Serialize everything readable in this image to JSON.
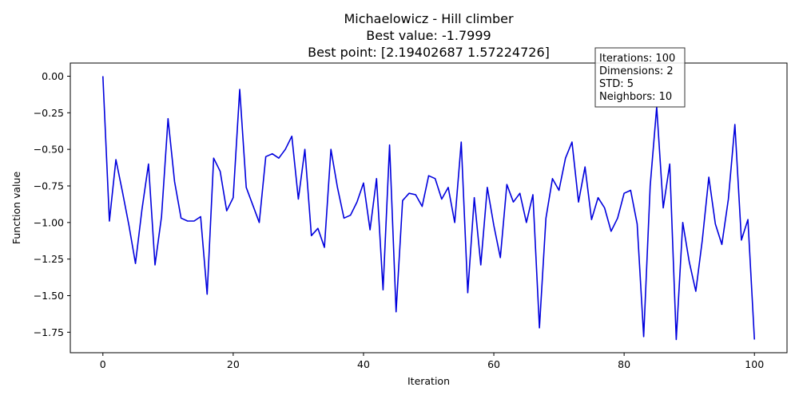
{
  "chart_data": {
    "type": "line",
    "title_lines": [
      "Michaelowicz - Hill climber",
      "Best value: -1.7999",
      "Best point: [2.19402687 1.57224726]"
    ],
    "xlabel": "Iteration",
    "ylabel": "Function value",
    "xlim": [
      -5,
      105
    ],
    "ylim": [
      -1.89,
      0.09
    ],
    "xticks": [
      0,
      20,
      40,
      60,
      80,
      100
    ],
    "xtick_labels": [
      "0",
      "20",
      "40",
      "60",
      "80",
      "100"
    ],
    "yticks": [
      0.0,
      -0.25,
      -0.5,
      -0.75,
      -1.0,
      -1.25,
      -1.5,
      -1.75
    ],
    "ytick_labels": [
      "0.00",
      "−0.25",
      "−0.50",
      "−0.75",
      "−1.00",
      "−1.25",
      "−1.50",
      "−1.75"
    ],
    "grid": false,
    "series": [
      {
        "color": "#0000dd",
        "x": [
          0,
          1,
          2,
          3,
          4,
          5,
          6,
          7,
          8,
          9,
          10,
          11,
          12,
          13,
          14,
          15,
          16,
          17,
          18,
          19,
          20,
          21,
          22,
          23,
          24,
          25,
          26,
          27,
          28,
          29,
          30,
          31,
          32,
          33,
          34,
          35,
          36,
          37,
          38,
          39,
          40,
          41,
          42,
          43,
          44,
          45,
          46,
          47,
          48,
          49,
          50,
          51,
          52,
          53,
          54,
          55,
          56,
          57,
          58,
          59,
          60,
          61,
          62,
          63,
          64,
          65,
          66,
          67,
          68,
          69,
          70,
          71,
          72,
          73,
          74,
          75,
          76,
          77,
          78,
          79,
          80,
          81,
          82,
          83,
          84,
          85,
          86,
          87,
          88,
          89,
          90,
          91,
          92,
          93,
          94,
          95,
          96,
          97,
          98,
          99,
          100
        ],
        "y": [
          0.0,
          -0.99,
          -0.57,
          -0.79,
          -1.02,
          -1.28,
          -0.91,
          -0.6,
          -1.29,
          -0.96,
          -0.29,
          -0.72,
          -0.97,
          -0.99,
          -0.99,
          -0.96,
          -1.49,
          -0.56,
          -0.65,
          -0.92,
          -0.83,
          -0.09,
          -0.76,
          -0.88,
          -1.0,
          -0.55,
          -0.53,
          -0.56,
          -0.5,
          -0.41,
          -0.84,
          -0.5,
          -1.09,
          -1.04,
          -1.17,
          -0.5,
          -0.76,
          -0.97,
          -0.95,
          -0.86,
          -0.73,
          -1.05,
          -0.7,
          -1.46,
          -0.47,
          -1.61,
          -0.85,
          -0.8,
          -0.81,
          -0.89,
          -0.68,
          -0.7,
          -0.84,
          -0.76,
          -1.0,
          -0.45,
          -1.48,
          -0.83,
          -1.29,
          -0.76,
          -1.02,
          -1.24,
          -0.74,
          -0.86,
          -0.8,
          -1.0,
          -0.81,
          -1.72,
          -0.97,
          -0.7,
          -0.78,
          -0.56,
          -0.45,
          -0.86,
          -0.62,
          -0.98,
          -0.83,
          -0.9,
          -1.06,
          -0.97,
          -0.8,
          -0.78,
          -1.01,
          -1.78,
          -0.75,
          -0.21,
          -0.9,
          -0.6,
          -1.8,
          -1.0,
          -1.27,
          -1.47,
          -1.12,
          -0.69,
          -1.01,
          -1.15,
          -0.84,
          -0.33,
          -1.12,
          -0.98,
          -1.8
        ]
      }
    ],
    "info_box": [
      "Iterations: 100",
      "Dimensions: 2",
      "STD: 5",
      "Neighbors: 10"
    ]
  }
}
